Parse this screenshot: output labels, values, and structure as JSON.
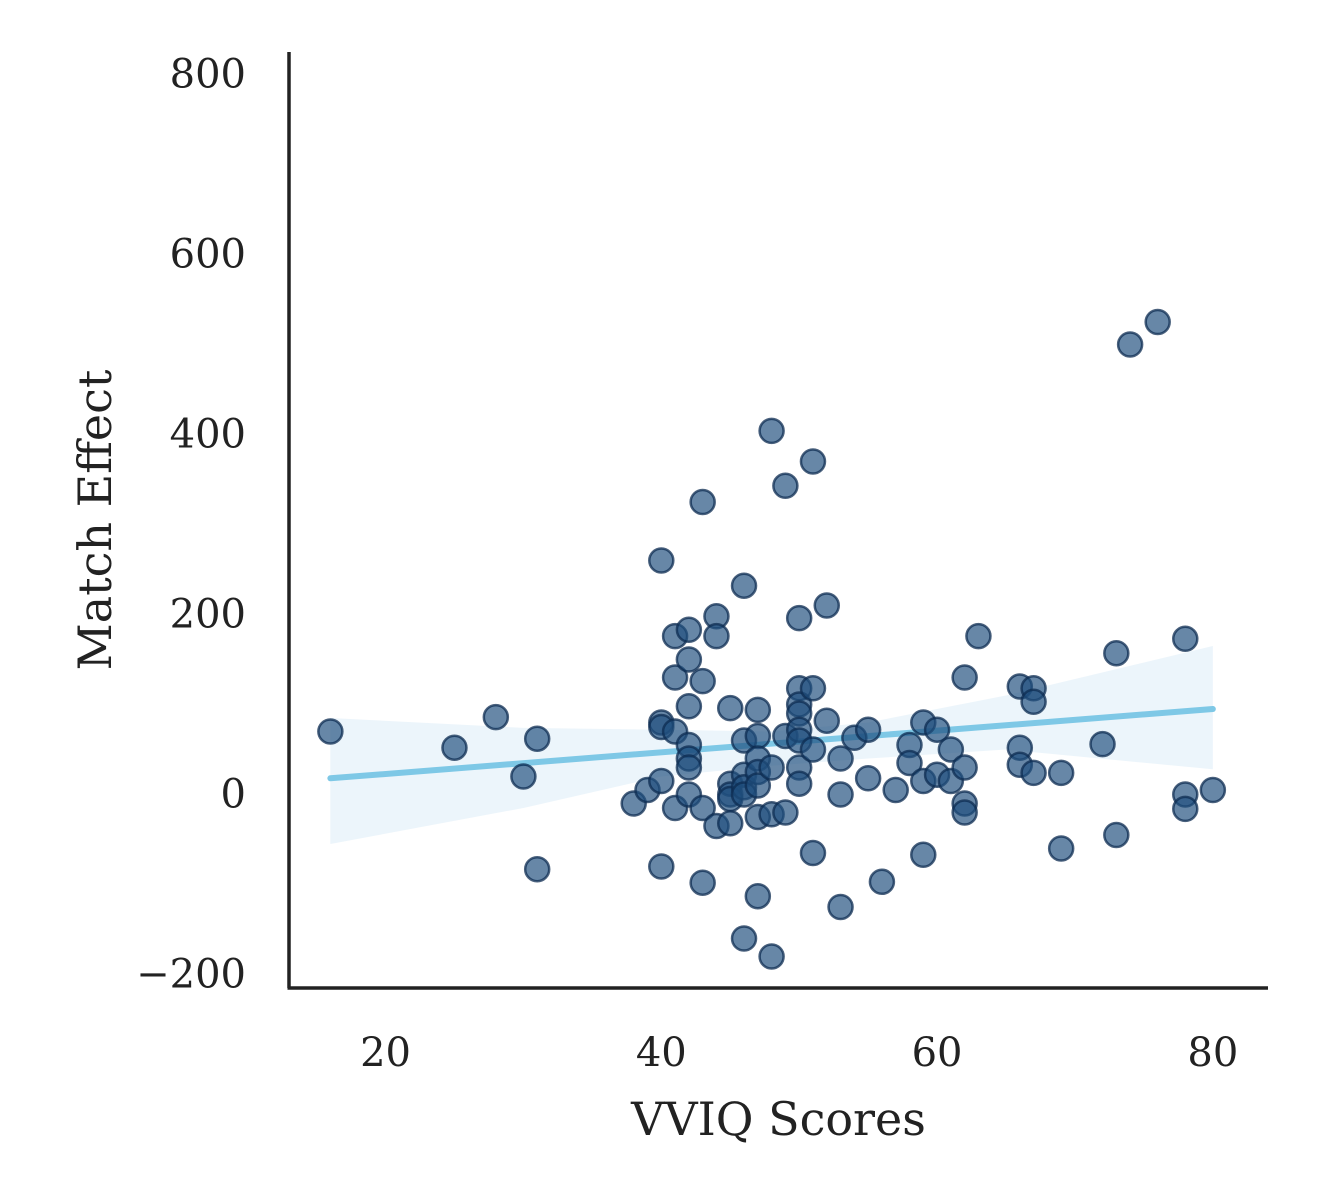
{
  "chart_data": {
    "type": "scatter",
    "title": "",
    "xlabel": "VVIQ Scores",
    "ylabel": "Match Effect",
    "xlim": [
      13,
      84
    ],
    "ylim": [
      -215,
      825
    ],
    "x_ticks": [
      20,
      40,
      60,
      80
    ],
    "y_ticks": [
      -200,
      0,
      200,
      400,
      600,
      800
    ],
    "x_tick_labels": [
      "20",
      "40",
      "60",
      "80"
    ],
    "y_tick_labels": [
      "−200",
      "0",
      "200",
      "400",
      "600",
      "800"
    ],
    "grid": false,
    "legend": "none",
    "colors": {
      "points": "#1f4e7e",
      "point_edge": "#0d2c52",
      "regression_line": "#7ec8e6",
      "confidence_band": "#d9ecf8",
      "axis": "#222222"
    },
    "regression": {
      "x": [
        16,
        80
      ],
      "y": [
        18,
        95
      ],
      "ci_x": [
        16,
        30,
        40,
        48,
        55,
        65,
        80
      ],
      "ci_upper": [
        85,
        74,
        72,
        70,
        80,
        110,
        165
      ],
      "ci_lower": [
        -55,
        -15,
        20,
        32,
        40,
        50,
        28
      ]
    },
    "points": [
      {
        "x": 16,
        "y": 70
      },
      {
        "x": 25,
        "y": 52
      },
      {
        "x": 28,
        "y": 86
      },
      {
        "x": 30,
        "y": 20
      },
      {
        "x": 31,
        "y": 62
      },
      {
        "x": 31,
        "y": -83
      },
      {
        "x": 38,
        "y": -10
      },
      {
        "x": 39,
        "y": 5
      },
      {
        "x": 40,
        "y": 260
      },
      {
        "x": 40,
        "y": 80
      },
      {
        "x": 40,
        "y": 75
      },
      {
        "x": 40,
        "y": 15
      },
      {
        "x": 40,
        "y": -80
      },
      {
        "x": 41,
        "y": 176
      },
      {
        "x": 41,
        "y": 130
      },
      {
        "x": 41,
        "y": 70
      },
      {
        "x": 41,
        "y": -15
      },
      {
        "x": 42,
        "y": 183
      },
      {
        "x": 42,
        "y": 150
      },
      {
        "x": 42,
        "y": 98
      },
      {
        "x": 42,
        "y": 55
      },
      {
        "x": 42,
        "y": 40
      },
      {
        "x": 42,
        "y": 30
      },
      {
        "x": 42,
        "y": 0
      },
      {
        "x": 43,
        "y": 325
      },
      {
        "x": 43,
        "y": 126
      },
      {
        "x": 43,
        "y": -15
      },
      {
        "x": 43,
        "y": -98
      },
      {
        "x": 44,
        "y": 198
      },
      {
        "x": 44,
        "y": 176
      },
      {
        "x": 44,
        "y": -35
      },
      {
        "x": 45,
        "y": 96
      },
      {
        "x": 45,
        "y": 12
      },
      {
        "x": 45,
        "y": 0
      },
      {
        "x": 45,
        "y": -5
      },
      {
        "x": 45,
        "y": -32
      },
      {
        "x": 46,
        "y": 232
      },
      {
        "x": 46,
        "y": 60
      },
      {
        "x": 46,
        "y": 22
      },
      {
        "x": 46,
        "y": 8
      },
      {
        "x": 46,
        "y": 0
      },
      {
        "x": 46,
        "y": -160
      },
      {
        "x": 47,
        "y": 94
      },
      {
        "x": 47,
        "y": 65
      },
      {
        "x": 47,
        "y": 40
      },
      {
        "x": 47,
        "y": 25
      },
      {
        "x": 47,
        "y": 10
      },
      {
        "x": 47,
        "y": -25
      },
      {
        "x": 47,
        "y": -113
      },
      {
        "x": 48,
        "y": 404
      },
      {
        "x": 48,
        "y": 30
      },
      {
        "x": 48,
        "y": -22
      },
      {
        "x": 48,
        "y": -180
      },
      {
        "x": 49,
        "y": 343
      },
      {
        "x": 49,
        "y": 65
      },
      {
        "x": 49,
        "y": -20
      },
      {
        "x": 50,
        "y": 196
      },
      {
        "x": 50,
        "y": 118
      },
      {
        "x": 50,
        "y": 100
      },
      {
        "x": 50,
        "y": 90
      },
      {
        "x": 50,
        "y": 72
      },
      {
        "x": 50,
        "y": 60
      },
      {
        "x": 50,
        "y": 30
      },
      {
        "x": 50,
        "y": 12
      },
      {
        "x": 51,
        "y": 370
      },
      {
        "x": 51,
        "y": 118
      },
      {
        "x": 51,
        "y": 50
      },
      {
        "x": 51,
        "y": -65
      },
      {
        "x": 52,
        "y": 210
      },
      {
        "x": 52,
        "y": 82
      },
      {
        "x": 53,
        "y": 40
      },
      {
        "x": 53,
        "y": 0
      },
      {
        "x": 53,
        "y": -125
      },
      {
        "x": 54,
        "y": 63
      },
      {
        "x": 55,
        "y": 72
      },
      {
        "x": 55,
        "y": 18
      },
      {
        "x": 56,
        "y": -97
      },
      {
        "x": 57,
        "y": 5
      },
      {
        "x": 58,
        "y": 55
      },
      {
        "x": 58,
        "y": 35
      },
      {
        "x": 59,
        "y": 80
      },
      {
        "x": 59,
        "y": 15
      },
      {
        "x": 59,
        "y": -67
      },
      {
        "x": 60,
        "y": 72
      },
      {
        "x": 60,
        "y": 22
      },
      {
        "x": 61,
        "y": 50
      },
      {
        "x": 61,
        "y": 15
      },
      {
        "x": 62,
        "y": 130
      },
      {
        "x": 62,
        "y": 30
      },
      {
        "x": 62,
        "y": -10
      },
      {
        "x": 62,
        "y": -20
      },
      {
        "x": 63,
        "y": 176
      },
      {
        "x": 66,
        "y": 120
      },
      {
        "x": 66,
        "y": 52
      },
      {
        "x": 66,
        "y": 33
      },
      {
        "x": 67,
        "y": 118
      },
      {
        "x": 67,
        "y": 103
      },
      {
        "x": 67,
        "y": 24
      },
      {
        "x": 69,
        "y": 24
      },
      {
        "x": 69,
        "y": -60
      },
      {
        "x": 72,
        "y": 56
      },
      {
        "x": 73,
        "y": 157
      },
      {
        "x": 73,
        "y": -45
      },
      {
        "x": 74,
        "y": 500
      },
      {
        "x": 76,
        "y": 525
      },
      {
        "x": 78,
        "y": 173
      },
      {
        "x": 78,
        "y": 0
      },
      {
        "x": 78,
        "y": -16
      },
      {
        "x": 80,
        "y": 5
      }
    ]
  }
}
